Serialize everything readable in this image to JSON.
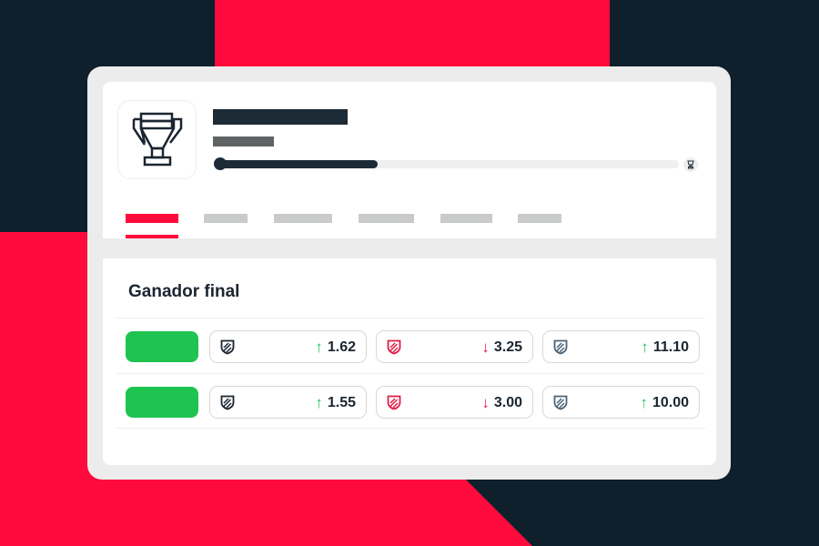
{
  "colors": {
    "accent": "#ff0a3c",
    "dark": "#0f1f2b",
    "green": "#1ec44f",
    "up": "#22c55e",
    "down": "#e11d48"
  },
  "header": {
    "logo_icon": "trophy-icon",
    "progress": 0.35,
    "end_icon": "trophy-icon"
  },
  "tabs_count": 6,
  "market": {
    "title": "Ganador final",
    "rows": [
      {
        "odds": [
          {
            "icon": "shield-icon",
            "dir": "up",
            "value": "1.62"
          },
          {
            "icon": "shield-icon",
            "dir": "down",
            "value": "3.25"
          },
          {
            "icon": "shield-icon",
            "dir": "up",
            "value": "11.10"
          }
        ]
      },
      {
        "odds": [
          {
            "icon": "shield-icon",
            "dir": "up",
            "value": "1.55"
          },
          {
            "icon": "shield-icon",
            "dir": "down",
            "value": "3.00"
          },
          {
            "icon": "shield-icon",
            "dir": "up",
            "value": "10.00"
          }
        ]
      }
    ]
  }
}
